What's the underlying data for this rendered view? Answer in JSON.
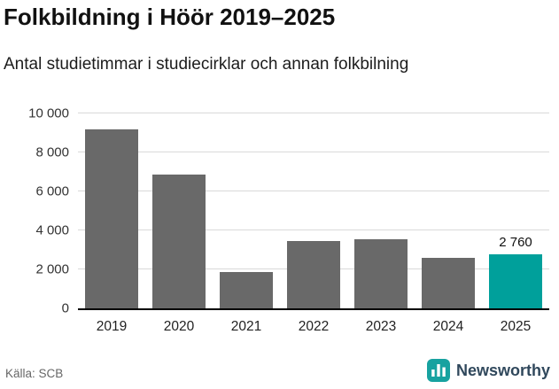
{
  "title": "Folkbildning i Höör 2019–2025",
  "subtitle": "Antal studietimmar i studiecirklar och annan folkbilning",
  "source": "Källa: SCB",
  "branding": {
    "logo_text": "Newsworthy",
    "logo_icon": "bar-chart-icon",
    "icon_color": "#17a2a0",
    "text_color": "#30485c"
  },
  "colors": {
    "bar": "#696969",
    "highlight": "#00a09b",
    "gridline": "#d9d9d9",
    "axis": "#000000"
  },
  "chart_data": {
    "type": "bar",
    "title": "Folkbildning i Höör 2019–2025",
    "subtitle": "Antal studietimmar i studiecirklar och annan folkbilning",
    "categories": [
      "2019",
      "2020",
      "2021",
      "2022",
      "2023",
      "2024",
      "2025"
    ],
    "values": [
      9200,
      6850,
      1850,
      3450,
      3550,
      2600,
      2760
    ],
    "highlight_index": 6,
    "data_labels": {
      "6": "2 760"
    },
    "yticks": [
      0,
      2000,
      4000,
      6000,
      8000,
      10000
    ],
    "ytick_labels": [
      "0",
      "2 000",
      "4 000",
      "6 000",
      "8 000",
      "10 000"
    ],
    "ylim": [
      0,
      10000
    ],
    "xlabel": "",
    "ylabel": "",
    "grid": true,
    "legend_position": "none"
  }
}
